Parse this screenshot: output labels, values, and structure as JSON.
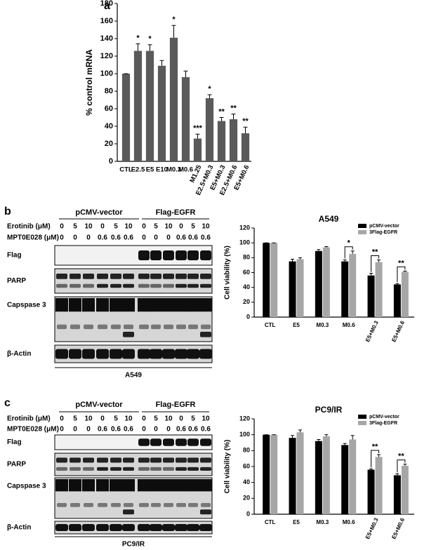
{
  "panel_labels": [
    "a",
    "b",
    "c"
  ],
  "chart_data": [
    {
      "type": "bar",
      "ylabel": "% control mRNA",
      "categories": [
        "CTL",
        "E2.5",
        "E5",
        "E10",
        "M0.3",
        "M0.6",
        "M1.25",
        "E2.5+M0.3",
        "E5+M0.3",
        "E2.5+M0.6",
        "E5+M0.6"
      ],
      "values": [
        100,
        126,
        126,
        109,
        141,
        96,
        26,
        72,
        46,
        48,
        32
      ],
      "errors": [
        0,
        8,
        7,
        6,
        14,
        7,
        5,
        4,
        4,
        6,
        7
      ],
      "annotations": [
        null,
        "*",
        "*",
        null,
        "*",
        null,
        "***",
        "*",
        "**",
        "**",
        "**"
      ],
      "color": "#5a5a5a",
      "ylim": [
        0,
        180
      ],
      "yticks": [
        0,
        20,
        40,
        60,
        80,
        100,
        120,
        140,
        160,
        180
      ]
    },
    {
      "type": "grouped_bar",
      "title": "A549",
      "ylabel": "Cell viability (%)",
      "categories": [
        "CTL",
        "E5",
        "M0.3",
        "M0.6",
        "E5+M0.3",
        "E5+M0.6"
      ],
      "series": [
        {
          "name": "pCMV-vector",
          "color": "#000000",
          "values": [
            100,
            75,
            89,
            75,
            56,
            44
          ],
          "errors": [
            0,
            3,
            2,
            2,
            3,
            1
          ]
        },
        {
          "name": "3Flag-EGFR",
          "color": "#a6a6a6",
          "values": [
            100,
            78,
            94,
            85,
            74,
            61
          ],
          "errors": [
            0,
            2,
            1,
            4,
            3,
            1
          ]
        }
      ],
      "annotations": [
        null,
        null,
        null,
        "*",
        "**",
        "**"
      ],
      "ylim": [
        0,
        120
      ],
      "yticks": [
        0,
        20,
        40,
        60,
        80,
        100,
        120
      ],
      "legend": "upper right"
    },
    {
      "type": "grouped_bar",
      "title": "PC9/IR",
      "ylabel": "Cell viability (%)",
      "categories": [
        "CTL",
        "E5",
        "M0.3",
        "M0.6",
        "E5+M0.3",
        "E5+M0.6"
      ],
      "series": [
        {
          "name": "pCMV-vector",
          "color": "#000000",
          "values": [
            100,
            96,
            92,
            87,
            56,
            49
          ],
          "errors": [
            0,
            3,
            2,
            2,
            1,
            2
          ]
        },
        {
          "name": "3Flag-EGFR",
          "color": "#a6a6a6",
          "values": [
            100,
            103,
            98,
            94,
            72,
            61
          ],
          "errors": [
            0,
            3,
            2,
            5,
            3,
            2
          ]
        }
      ],
      "annotations": [
        null,
        null,
        null,
        null,
        "**",
        "**"
      ],
      "ylim": [
        0,
        120
      ],
      "yticks": [
        0,
        20,
        40,
        60,
        80,
        100,
        120
      ],
      "legend": "upper right"
    }
  ],
  "blots": [
    {
      "groups": [
        "pCMV-vector",
        "Flag-EGFR"
      ],
      "treatments": [
        {
          "name": "Erotinib (μM)",
          "doses": [
            0,
            5,
            10,
            0,
            5,
            10,
            0,
            5,
            10,
            0,
            5,
            10
          ]
        },
        {
          "name": "MPT0E028 (μM)",
          "doses": [
            0,
            0,
            0,
            0.6,
            0.6,
            0.6,
            0,
            0,
            0,
            0.6,
            0.6,
            0.6
          ]
        }
      ],
      "bands": [
        "Flag",
        "PARP",
        "Capspase 3",
        "β-Actin"
      ],
      "cell_line": "A549"
    },
    {
      "groups": [
        "pCMV-vector",
        "Flag-EGFR"
      ],
      "treatments": [
        {
          "name": "Erotinib (μM)",
          "doses": [
            0,
            5,
            10,
            0,
            5,
            10,
            0,
            5,
            10,
            0,
            5,
            10
          ]
        },
        {
          "name": "MPT0E028 (μM)",
          "doses": [
            0,
            0,
            0,
            0.6,
            0.6,
            0.6,
            0,
            0,
            0,
            0.6,
            0.6,
            0.6
          ]
        }
      ],
      "bands": [
        "Flag",
        "PARP",
        "Capspase 3",
        "β-Actin"
      ],
      "cell_line": "PC9/IR"
    }
  ]
}
